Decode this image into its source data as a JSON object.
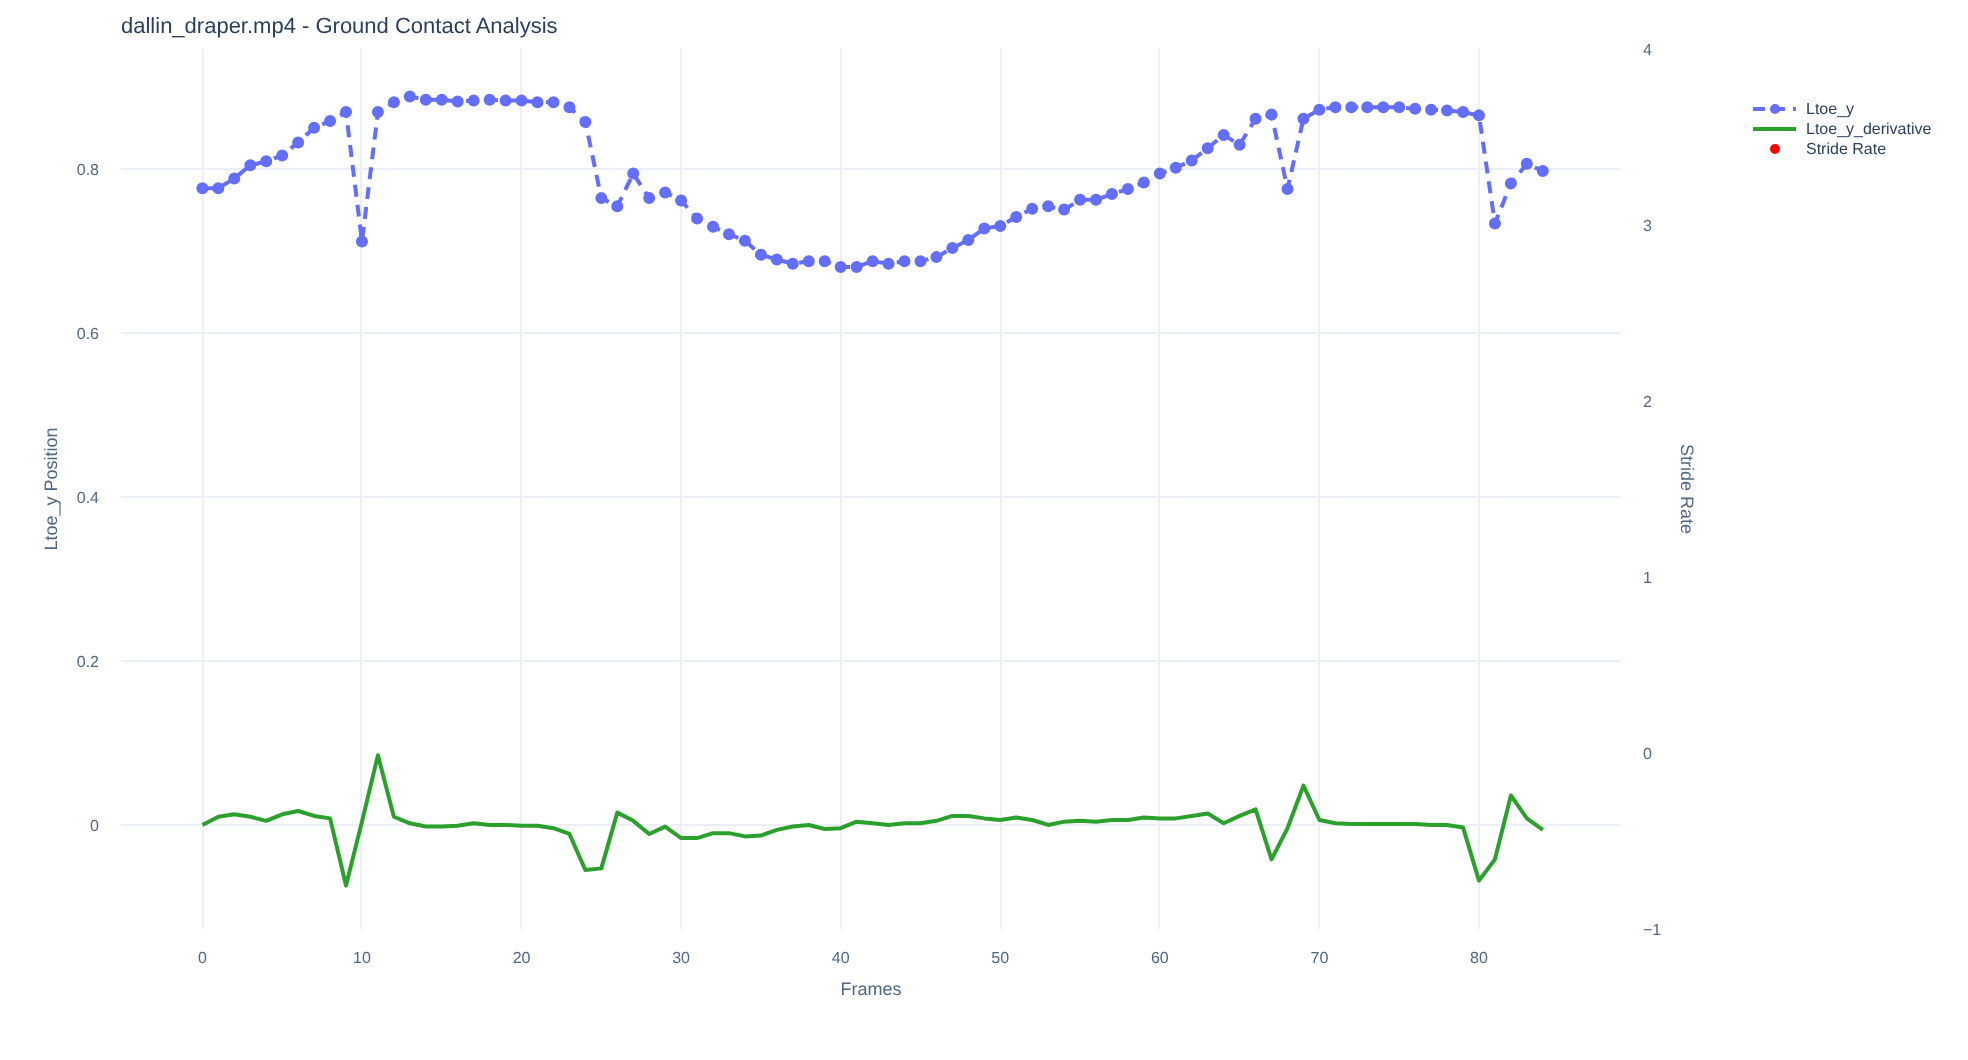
{
  "chart_data": {
    "type": "line",
    "title": "dallin_draper.mp4 - Ground Contact Analysis",
    "xlabel": "Frames",
    "ylabel": "Ltoe_y Position",
    "y2label": "Stride Rate",
    "x": [
      0,
      1,
      2,
      3,
      4,
      5,
      6,
      7,
      8,
      9,
      10,
      11,
      12,
      13,
      14,
      15,
      16,
      17,
      18,
      19,
      20,
      21,
      22,
      23,
      24,
      25,
      26,
      27,
      28,
      29,
      30,
      31,
      32,
      33,
      34,
      35,
      36,
      37,
      38,
      39,
      40,
      41,
      42,
      43,
      44,
      45,
      46,
      47,
      48,
      49,
      50,
      51,
      52,
      53,
      54,
      55,
      56,
      57,
      58,
      59,
      60,
      61,
      62,
      63,
      64,
      65,
      66,
      67,
      68,
      69,
      70,
      71,
      72,
      73,
      74,
      75,
      76,
      77,
      78,
      79,
      80,
      81,
      82,
      83,
      84
    ],
    "series": [
      {
        "name": "Ltoe_y",
        "color": "#636efa",
        "marker": "circle",
        "line_style": "dashed",
        "values": [
          0.777,
          0.777,
          0.789,
          0.805,
          0.81,
          0.817,
          0.833,
          0.851,
          0.859,
          0.87,
          0.712,
          0.87,
          0.882,
          0.889,
          0.885,
          0.885,
          0.883,
          0.884,
          0.885,
          0.884,
          0.884,
          0.882,
          0.882,
          0.876,
          0.858,
          0.765,
          0.755,
          0.795,
          0.765,
          0.772,
          0.762,
          0.74,
          0.73,
          0.721,
          0.713,
          0.696,
          0.69,
          0.685,
          0.688,
          0.688,
          0.681,
          0.681,
          0.688,
          0.685,
          0.688,
          0.688,
          0.693,
          0.704,
          0.714,
          0.728,
          0.731,
          0.742,
          0.752,
          0.755,
          0.751,
          0.763,
          0.763,
          0.77,
          0.776,
          0.784,
          0.795,
          0.802,
          0.811,
          0.826,
          0.842,
          0.83,
          0.862,
          0.867,
          0.776,
          0.862,
          0.873,
          0.876,
          0.876,
          0.876,
          0.876,
          0.876,
          0.874,
          0.873,
          0.872,
          0.87,
          0.866,
          0.734,
          0.783,
          0.807,
          0.798
        ]
      },
      {
        "name": "Ltoe_y_derivative",
        "color": "#2ca02c",
        "marker": "none",
        "line_style": "solid",
        "values": [
          0,
          0.01,
          0.013,
          0.01,
          0.005,
          0.013,
          0.017,
          0.011,
          0.008,
          -0.074,
          0.004,
          0.085,
          0.01,
          0.002,
          -0.002,
          -0.002,
          -0.001,
          0.002,
          0,
          0,
          -0.001,
          -0.001,
          -0.004,
          -0.011,
          -0.055,
          -0.053,
          0.015,
          0.005,
          -0.011,
          -0.002,
          -0.016,
          -0.016,
          -0.01,
          -0.01,
          -0.014,
          -0.013,
          -0.006,
          -0.002,
          0,
          -0.005,
          -0.004,
          0.004,
          0.002,
          0,
          0.002,
          0.002,
          0.005,
          0.011,
          0.011,
          0.008,
          0.006,
          0.009,
          0.006,
          0,
          0.004,
          0.005,
          0.004,
          0.006,
          0.006,
          0.009,
          0.008,
          0.008,
          0.011,
          0.014,
          0.002,
          0.011,
          0.019,
          -0.042,
          -0.004,
          0.048,
          0.006,
          0.002,
          0.001,
          0.001,
          0.001,
          0.001,
          0.001,
          0,
          0,
          -0.003,
          -0.068,
          -0.042,
          0.036,
          0.008,
          -0.006
        ]
      },
      {
        "name": "Stride Rate",
        "color": "#ff0000",
        "type": "scatter",
        "axis": "y2",
        "marker": "circle",
        "values": [
          null,
          null,
          null,
          null,
          null,
          null,
          null,
          null,
          null,
          null,
          null,
          null,
          null,
          null,
          null,
          null,
          null,
          null,
          null,
          null,
          null,
          null,
          null,
          null,
          null,
          null,
          null,
          null,
          null,
          null,
          null,
          null,
          null,
          null,
          null,
          null,
          null,
          null,
          null,
          null,
          null,
          null,
          null,
          null,
          null,
          null,
          null,
          null,
          null,
          null,
          null,
          null,
          null,
          null,
          null,
          null,
          null,
          null,
          null,
          null,
          null,
          null,
          null,
          null,
          null,
          null,
          null,
          null,
          null,
          null,
          null,
          null,
          null,
          null,
          null,
          null,
          null,
          null,
          null,
          null,
          null,
          null,
          null,
          null,
          null
        ]
      }
    ],
    "xlim": [
      -5.1,
      88.9
    ],
    "xticks": [
      0,
      10,
      20,
      30,
      40,
      50,
      60,
      70,
      80
    ],
    "ylim": [
      -0.127,
      0.947
    ],
    "yticks": [
      0,
      0.2,
      0.4,
      0.6,
      0.8
    ],
    "y2lim": [
      -1,
      4
    ],
    "y2ticks": [
      -1,
      0,
      1,
      2,
      3,
      4
    ],
    "grid": true,
    "legend": "top right"
  }
}
